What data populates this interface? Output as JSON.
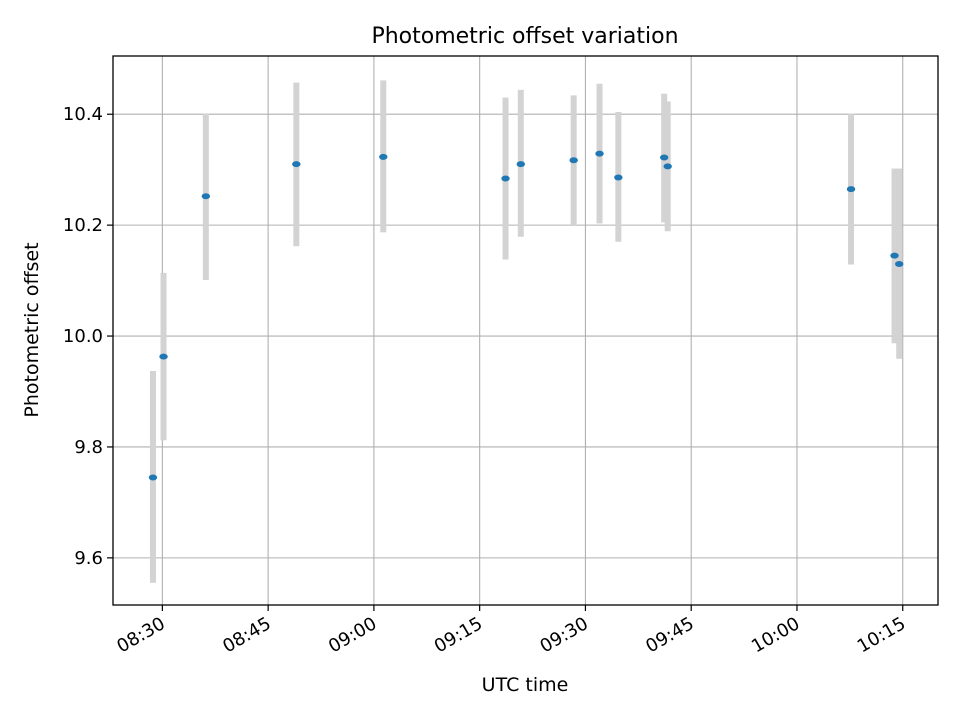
{
  "chart_data": {
    "type": "scatter",
    "title": "Photometric offset variation",
    "xlabel": "UTC time",
    "ylabel": "Photometric offset",
    "x_is_time": true,
    "xlim": [
      "08:23",
      "10:20"
    ],
    "ylim": [
      9.515,
      10.505
    ],
    "x_ticks": [
      "08:30",
      "08:45",
      "09:00",
      "09:15",
      "09:30",
      "09:45",
      "10:00",
      "10:15"
    ],
    "y_ticks": [
      9.6,
      9.8,
      10.0,
      10.2,
      10.4
    ],
    "grid": true,
    "marker_color": "#1f77b4",
    "errorbar_color": "#d3d3d3",
    "points": [
      {
        "x": "08:28:40",
        "y": 9.745,
        "low": 9.555,
        "high": 9.937
      },
      {
        "x": "08:30:10",
        "y": 9.963,
        "low": 9.812,
        "high": 10.114
      },
      {
        "x": "08:36:10",
        "y": 10.252,
        "low": 10.101,
        "high": 10.401
      },
      {
        "x": "08:49:00",
        "y": 10.31,
        "low": 10.162,
        "high": 10.457
      },
      {
        "x": "09:01:20",
        "y": 10.323,
        "low": 10.187,
        "high": 10.461
      },
      {
        "x": "09:18:40",
        "y": 10.284,
        "low": 10.138,
        "high": 10.43
      },
      {
        "x": "09:20:50",
        "y": 10.31,
        "low": 10.179,
        "high": 10.444
      },
      {
        "x": "09:28:20",
        "y": 10.317,
        "low": 10.2,
        "high": 10.434
      },
      {
        "x": "09:32:00",
        "y": 10.329,
        "low": 10.203,
        "high": 10.455
      },
      {
        "x": "09:34:40",
        "y": 10.286,
        "low": 10.17,
        "high": 10.404
      },
      {
        "x": "09:41:10",
        "y": 10.322,
        "low": 10.205,
        "high": 10.437
      },
      {
        "x": "09:41:40",
        "y": 10.306,
        "low": 10.189,
        "high": 10.423
      },
      {
        "x": "10:07:40",
        "y": 10.265,
        "low": 10.129,
        "high": 10.401
      },
      {
        "x": "10:13:50",
        "y": 10.145,
        "low": 9.987,
        "high": 10.302
      },
      {
        "x": "10:14:30",
        "y": 10.13,
        "low": 9.959,
        "high": 10.302
      }
    ]
  }
}
